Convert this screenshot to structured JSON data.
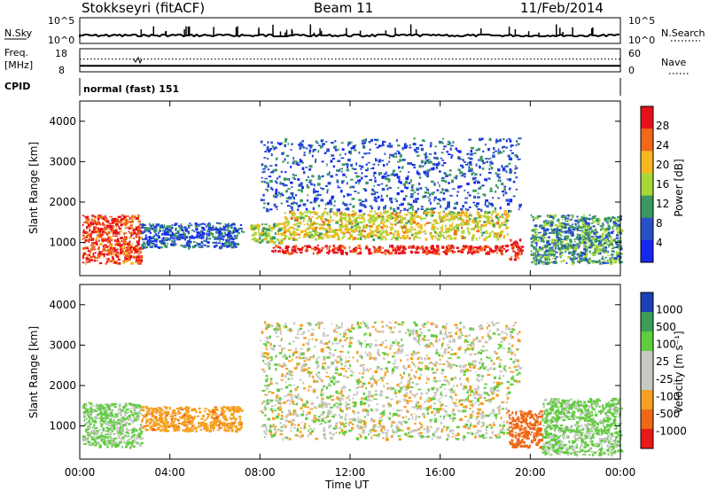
{
  "header": {
    "station": "Stokkseyri (fitACF)",
    "beam": "Beam 11",
    "date": "11/Feb/2014"
  },
  "strip": {
    "nsky_label": "N.Sky",
    "nsearch_label": "N.Search",
    "freq_label": "Freq.",
    "freq_unit": "[MHz]",
    "nave_label": "Nave",
    "cpid_label": "CPID",
    "cpid_value": "normal (fast) 151",
    "nsky_ticks": [
      "10^5",
      "10^0"
    ],
    "nsearch_ticks": [
      "10^5",
      "10^0"
    ],
    "freq_ticks": [
      "18",
      "8"
    ],
    "nave_ticks": [
      "60",
      "0"
    ],
    "freq_level": 0.82,
    "nave_level": 0.55
  },
  "power_panel": {
    "ylabel": "Slant Range [km]",
    "cbar_label": "Power [dB]",
    "cbar_ticks": [
      "28",
      "24",
      "20",
      "16",
      "12",
      "8",
      "4"
    ],
    "cbar_colors": [
      "#e8101a",
      "#f06818",
      "#f5b820",
      "#a8d838",
      "#3a9860",
      "#2850c8",
      "#1428f0"
    ]
  },
  "velocity_panel": {
    "ylabel": "Slant Range [km]",
    "cbar_label": "Velocity [m s⁻¹]",
    "cbar_ticks": [
      "1000",
      "500",
      "100",
      "25",
      "-25",
      "-100",
      "-500",
      "-1000"
    ],
    "cbar_colors": [
      "#1a40b8",
      "#3c9c58",
      "#60cc40",
      "#c8c8c4",
      "#c8c8c4",
      "#f5a020",
      "#ee6818",
      "#e81818"
    ]
  },
  "x_axis": {
    "label": "Time UT",
    "ticks": [
      "00:00",
      "04:00",
      "08:00",
      "12:00",
      "16:00",
      "20:00",
      "00:00"
    ]
  },
  "chart_data": [
    {
      "type": "heatmap",
      "title": "Power",
      "xlabel": "Time UT",
      "ylabel": "Slant Range [km]",
      "x_range_hours": [
        0,
        24
      ],
      "y_range_km": [
        180,
        4500
      ],
      "y_ticks": [
        1000,
        2000,
        3000,
        4000
      ],
      "colorbar": {
        "label": "Power [dB]",
        "ticks": [
          28,
          24,
          20,
          16,
          12,
          8,
          4
        ]
      },
      "regions": [
        {
          "t0": 0.1,
          "t1": 2.7,
          "r0": 500,
          "r1": 1700,
          "value": 26
        },
        {
          "t0": 2.7,
          "t1": 7.2,
          "r0": 900,
          "r1": 1500,
          "value": 8
        },
        {
          "t0": 7.5,
          "t1": 9.0,
          "r0": 1000,
          "r1": 1500,
          "value": 16
        },
        {
          "t0": 8.5,
          "t1": 19.0,
          "r0": 750,
          "r1": 950,
          "value": 28
        },
        {
          "t0": 9.0,
          "t1": 19.0,
          "r0": 1100,
          "r1": 1800,
          "value": 18
        },
        {
          "t0": 8.0,
          "t1": 19.5,
          "r0": 1800,
          "r1": 3600,
          "value": 8
        },
        {
          "t0": 19.0,
          "t1": 19.6,
          "r0": 600,
          "r1": 1100,
          "value": 28
        },
        {
          "t0": 20.0,
          "t1": 24.0,
          "r0": 500,
          "r1": 1700,
          "value": 12
        }
      ]
    },
    {
      "type": "heatmap",
      "title": "Velocity",
      "xlabel": "Time UT",
      "ylabel": "Slant Range [km]",
      "x_range_hours": [
        0,
        24
      ],
      "y_range_km": [
        180,
        4500
      ],
      "y_ticks": [
        1000,
        2000,
        3000,
        4000
      ],
      "colorbar": {
        "label": "Velocity [m s⁻¹]",
        "ticks": [
          1000,
          500,
          100,
          25,
          -25,
          -100,
          -500,
          -1000
        ]
      },
      "regions": [
        {
          "t0": 0.1,
          "t1": 2.7,
          "r0": 500,
          "r1": 1600,
          "value": 100
        },
        {
          "t0": 2.7,
          "t1": 7.2,
          "r0": 900,
          "r1": 1500,
          "value": -200
        },
        {
          "t0": 8.0,
          "t1": 19.0,
          "r0": 700,
          "r1": 2000,
          "value": 0
        },
        {
          "t0": 8.0,
          "t1": 19.5,
          "r0": 2000,
          "r1": 3600,
          "value": 0
        },
        {
          "t0": 19.0,
          "t1": 20.5,
          "r0": 500,
          "r1": 1400,
          "value": -500
        },
        {
          "t0": 20.5,
          "t1": 24.0,
          "r0": 300,
          "r1": 1700,
          "value": 100
        }
      ]
    }
  ]
}
